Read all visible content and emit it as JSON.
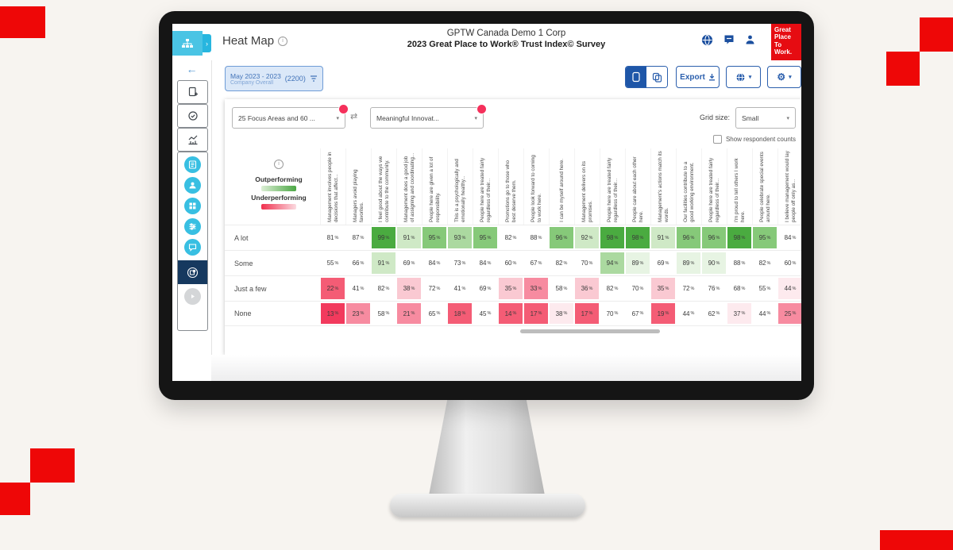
{
  "header": {
    "title": "Heat Map",
    "org_name": "GPTW Canada Demo 1 Corp",
    "survey_name": "2023 Great Place to Work® Trust Index© Survey"
  },
  "logo": {
    "line1": "Great",
    "line2": "Place",
    "line3": "To",
    "line4": "Work."
  },
  "toolbar": {
    "date_range": "May 2023 - 2023",
    "scope": "Company Overall",
    "respondents": "(2200)",
    "export_label": "Export"
  },
  "filters": {
    "statements_dropdown": "25 Focus Areas and 60 ...",
    "focus_dropdown": "Meaningful Innovat...",
    "grid_size_label": "Grid size:",
    "grid_size_value": "Small",
    "show_respondents_label": "Show respondent counts"
  },
  "legend": {
    "outperforming": "Outperforming",
    "underperforming": "Underperforming"
  },
  "heat_colors": {
    "n": "#ffffff",
    "g0": "#e7f4e3",
    "g1": "#cfe9c6",
    "g2": "#abd9a0",
    "g3": "#86c979",
    "g4": "#4aab40",
    "r0": "#fdeaee",
    "r1": "#fac9d2",
    "r2": "#f78ba0",
    "r3": "#f45c75",
    "r4": "#f23a5d"
  },
  "chart_data": {
    "type": "heatmap",
    "title": "Heat Map",
    "unit": "%",
    "columns": [
      "Management involves people in decisions that affect...",
      "Managers avoid playing favorites.",
      "I feel good about the ways we contribute to the community.",
      "Management does a good job of assigning and coordinating...",
      "People here are given a lot of responsibility.",
      "This is a psychologically and emotionally healthy...",
      "People here are treated fairly regardless of their...",
      "Promotions go to those who best deserve them.",
      "People look forward to coming to work here.",
      "I can be myself around here.",
      "Management delivers on its promises.",
      "People here are treated fairly regardless of their...",
      "People care about each other here.",
      "Management's actions match its words.",
      "Our facilities contribute to a good working environment.",
      "People here are treated fairly regardless of their...",
      "I'm proud to tell others I work here.",
      "People celebrate special events around here.",
      "I believe management would lay people off only as..."
    ],
    "rows": [
      "A lot",
      "Some",
      "Just a few",
      "None"
    ],
    "values": [
      [
        81,
        87,
        99,
        91,
        95,
        93,
        95,
        82,
        88,
        96,
        92,
        98,
        98,
        91,
        96,
        96,
        98,
        95,
        84
      ],
      [
        55,
        66,
        91,
        69,
        84,
        73,
        84,
        60,
        67,
        82,
        70,
        94,
        89,
        69,
        89,
        90,
        88,
        82,
        60
      ],
      [
        22,
        41,
        82,
        38,
        72,
        41,
        69,
        35,
        33,
        58,
        36,
        82,
        70,
        35,
        72,
        76,
        68,
        55,
        44
      ],
      [
        13,
        23,
        58,
        21,
        65,
        18,
        45,
        14,
        17,
        38,
        17,
        70,
        67,
        19,
        44,
        62,
        37,
        44,
        25
      ]
    ],
    "tones": [
      [
        "n",
        "n",
        "g4",
        "g1",
        "g3",
        "g2",
        "g3",
        "n",
        "n",
        "g3",
        "g1",
        "g4",
        "g4",
        "g1",
        "g3",
        "g3",
        "g4",
        "g3",
        "n"
      ],
      [
        "n",
        "n",
        "g1",
        "n",
        "n",
        "n",
        "n",
        "n",
        "n",
        "n",
        "n",
        "g2",
        "g0",
        "n",
        "g0",
        "g0",
        "n",
        "n",
        "n"
      ],
      [
        "r3",
        "n",
        "n",
        "r1",
        "n",
        "n",
        "n",
        "r1",
        "r2",
        "n",
        "r1",
        "n",
        "n",
        "r1",
        "n",
        "n",
        "n",
        "n",
        "r0"
      ],
      [
        "r4",
        "r2",
        "n",
        "r2",
        "n",
        "r3",
        "n",
        "r3",
        "r3",
        "r0",
        "r3",
        "n",
        "n",
        "r3",
        "n",
        "n",
        "r0",
        "n",
        "r2"
      ]
    ]
  }
}
